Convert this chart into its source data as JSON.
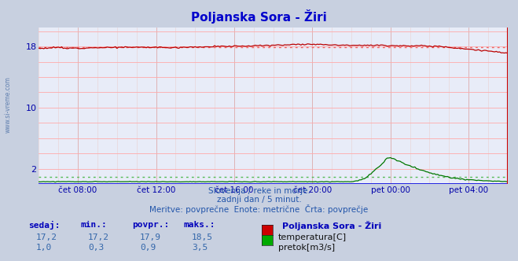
{
  "title": "Poljanska Sora - Žiri",
  "bg_color": "#c8d0e0",
  "plot_bg_color": "#e8ecf8",
  "grid_color_v": "#d8c8c8",
  "grid_color_h": "#e8c8c8",
  "title_color": "#0000cc",
  "axis_label_color": "#0000aa",
  "text_subtitle_color": "#2255aa",
  "watermark": "www.si-vreme.com",
  "subtitle_lines": [
    "Slovenija / reke in morje.",
    "zadnji dan / 5 minut.",
    "Meritve: povprečne  Enote: metrične  Črta: povprečje"
  ],
  "xlabel_ticks": [
    "čet 08:00",
    "čet 12:00",
    "čet 16:00",
    "čet 20:00",
    "pet 00:00",
    "pet 04:00"
  ],
  "ytick_vals": [
    2,
    10,
    18
  ],
  "ylim_min": 0,
  "ylim_max": 20.5,
  "xlim_min": 0,
  "xlim_max": 288,
  "temp_avg": 17.9,
  "flow_avg": 0.9,
  "temp_line_color": "#bb0000",
  "temp_avg_line_color": "#ee6666",
  "flow_line_color": "#007700",
  "flow_avg_line_color": "#55bb55",
  "zero_line_color": "#0000dd",
  "right_border_color": "#cc0000",
  "table_header_color": "#0000bb",
  "table_value_color": "#3366aa",
  "station_label_color": "#0000bb",
  "temp_box_color": "#cc0000",
  "flow_box_color": "#00aa00",
  "label_temp": "temperatura[C]",
  "label_flow": "pretok[m3/s]",
  "station_label": "Poljanska Sora - Žiri",
  "col_sedaj": "sedaj:",
  "col_min": "min.:",
  "col_povpr": "povpr.:",
  "col_maks": "maks.:",
  "sedaj_temp": "17,2",
  "min_temp": "17,2",
  "povpr_temp": "17,9",
  "maks_temp": "18,5",
  "sedaj_flow": "1,0",
  "min_flow": "0,3",
  "povpr_flow": "0,9",
  "maks_flow": "3,5",
  "xtick_positions": [
    24,
    72,
    120,
    168,
    216,
    264
  ],
  "vgrid_positions": [
    24,
    72,
    120,
    168,
    216,
    264
  ],
  "hgrid_positions": [
    2,
    4,
    6,
    8,
    10,
    12,
    14,
    16,
    18,
    20
  ]
}
